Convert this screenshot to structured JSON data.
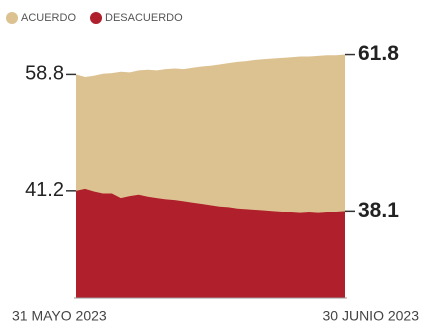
{
  "chart_data": {
    "type": "area",
    "categories": [
      "31 MAYO 2023",
      null,
      null,
      null,
      null,
      null,
      null,
      null,
      null,
      null,
      null,
      null,
      null,
      null,
      null,
      null,
      null,
      null,
      null,
      null,
      null,
      null,
      null,
      null,
      null,
      null,
      null,
      null,
      null,
      null,
      "30 JUNIO 2023"
    ],
    "series": [
      {
        "name": "ACUERDO",
        "color": "#dcc291",
        "values": [
          58.8,
          58.4,
          58.6,
          58.9,
          59.0,
          59.2,
          59.1,
          59.4,
          59.5,
          59.4,
          59.6,
          59.7,
          59.6,
          59.8,
          60.0,
          60.1,
          60.3,
          60.5,
          60.7,
          60.8,
          61.0,
          61.1,
          61.2,
          61.3,
          61.4,
          61.5,
          61.5,
          61.6,
          61.7,
          61.7,
          61.8
        ]
      },
      {
        "name": "DESACUERDO",
        "color": "#b01f2c",
        "values": [
          41.2,
          41.5,
          41.1,
          40.8,
          40.8,
          40.1,
          40.4,
          40.6,
          40.3,
          40.1,
          39.9,
          39.8,
          39.6,
          39.4,
          39.2,
          39.0,
          38.8,
          38.7,
          38.5,
          38.4,
          38.3,
          38.2,
          38.1,
          38.0,
          38.0,
          37.9,
          38.0,
          37.9,
          38.0,
          38.0,
          38.1
        ]
      }
    ],
    "ylim": [
      25,
      64
    ]
  }
}
